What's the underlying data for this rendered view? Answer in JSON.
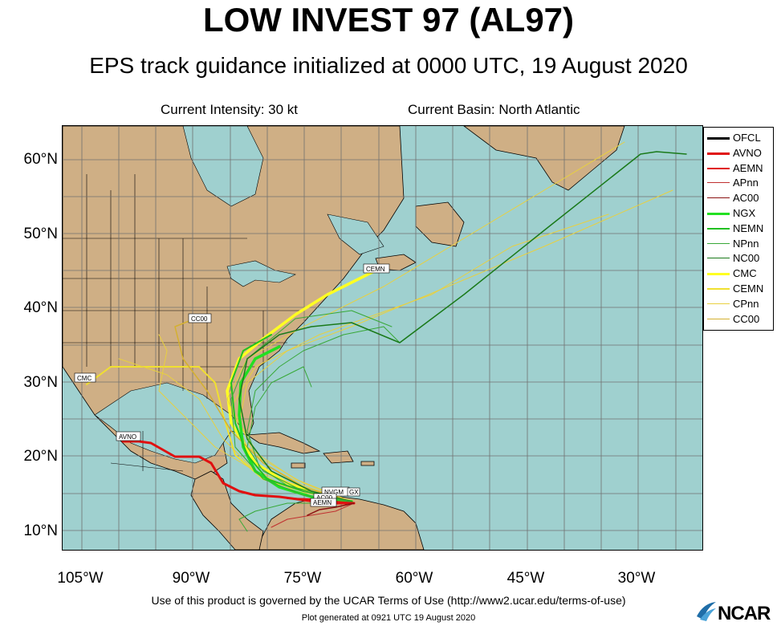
{
  "title": "LOW INVEST 97 (AL97)",
  "subtitle": "EPS track guidance initialized at 0000 UTC, 19 August 2020",
  "current_intensity": "Current Intensity: 30 kt",
  "current_basin": "Current Basin: North Atlantic",
  "map": {
    "lat_labels": [
      "60°N",
      "50°N",
      "40°N",
      "30°N",
      "20°N",
      "10°N"
    ],
    "lon_labels": [
      "105°W",
      "90°W",
      "75°W",
      "60°W",
      "45°W",
      "30°W"
    ],
    "colors": {
      "ocean": "#9fd0cf",
      "land": "#cfaf85",
      "borders": "#000000",
      "grid": "#7a7a7a"
    },
    "track_labels": [
      "CEMN",
      "CC00",
      "CMC",
      "AVNO",
      "NVGM",
      "GX",
      "AC00",
      "AEMN"
    ]
  },
  "legend": [
    {
      "label": "OFCL",
      "color": "#000000",
      "width": 3
    },
    {
      "label": "AVNO",
      "color": "#e01010",
      "width": 3
    },
    {
      "label": "AEMN",
      "color": "#e01010",
      "width": 2
    },
    {
      "label": "APnn",
      "color": "#c03030",
      "width": 1
    },
    {
      "label": "AC00",
      "color": "#8a1010",
      "width": 1.5
    },
    {
      "label": "NGX",
      "color": "#22e022",
      "width": 3
    },
    {
      "label": "NEMN",
      "color": "#22c022",
      "width": 2
    },
    {
      "label": "NPnn",
      "color": "#38a838",
      "width": 1
    },
    {
      "label": "NC00",
      "color": "#1a7a1a",
      "width": 1.5
    },
    {
      "label": "CMC",
      "color": "#ffff22",
      "width": 3
    },
    {
      "label": "CEMN",
      "color": "#f0e030",
      "width": 2
    },
    {
      "label": "CPnn",
      "color": "#e8d040",
      "width": 1
    },
    {
      "label": "CC00",
      "color": "#d4b030",
      "width": 1.5
    }
  ],
  "footer": {
    "terms": "Use of this product is governed by the UCAR Terms of Use (http://www2.ucar.edu/terms-of-use)",
    "generated": "Plot generated at 0921 UTC   19 August 2020",
    "logo": "NCAR"
  }
}
